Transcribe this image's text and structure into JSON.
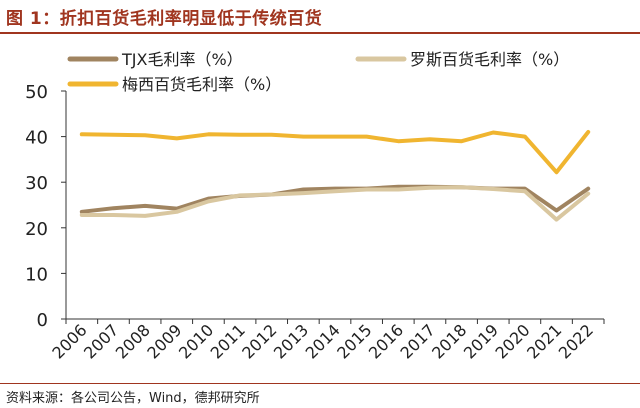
{
  "header": {
    "title": "图 1：折扣百货毛利率明显低于传统百货"
  },
  "footer": {
    "source": "资料来源：各公司公告，Wind，德邦研究所"
  },
  "colors": {
    "tjx": "#a08460",
    "ross": "#d9c7a0",
    "macys": "#f0b530",
    "accent": "#a0351f"
  },
  "chart_data": {
    "type": "line",
    "title": "图 1：折扣百货毛利率明显低于传统百货",
    "xlabel": "",
    "ylabel": "",
    "categories": [
      "2006",
      "2007",
      "2008",
      "2009",
      "2010",
      "2011",
      "2012",
      "2013",
      "2014",
      "2015",
      "2016",
      "2017",
      "2018",
      "2019",
      "2020",
      "2021",
      "2022"
    ],
    "ylim": [
      0,
      50
    ],
    "yticks": [
      0,
      10,
      20,
      30,
      40,
      50
    ],
    "grid": false,
    "legend_position": "top",
    "series": [
      {
        "key": "tjx",
        "name": "TJX毛利率（%）",
        "values": [
          23.5,
          24.3,
          24.8,
          24.2,
          26.4,
          27.0,
          27.3,
          28.4,
          28.6,
          28.6,
          29.0,
          29.0,
          28.9,
          28.6,
          28.6,
          23.8,
          28.6
        ]
      },
      {
        "key": "ross",
        "name": "罗斯百货毛利率（%）",
        "values": [
          22.8,
          22.8,
          22.6,
          23.5,
          25.8,
          27.1,
          27.3,
          27.6,
          28.0,
          28.4,
          28.4,
          28.8,
          28.9,
          28.5,
          28.0,
          21.8,
          27.5
        ]
      },
      {
        "key": "macys",
        "name": "梅西百货毛利率（%）",
        "values": [
          40.5,
          40.4,
          40.3,
          39.6,
          40.5,
          40.4,
          40.4,
          40.0,
          40.0,
          40.0,
          39.0,
          39.4,
          39.0,
          40.9,
          40.0,
          32.2,
          41.0
        ]
      }
    ]
  }
}
